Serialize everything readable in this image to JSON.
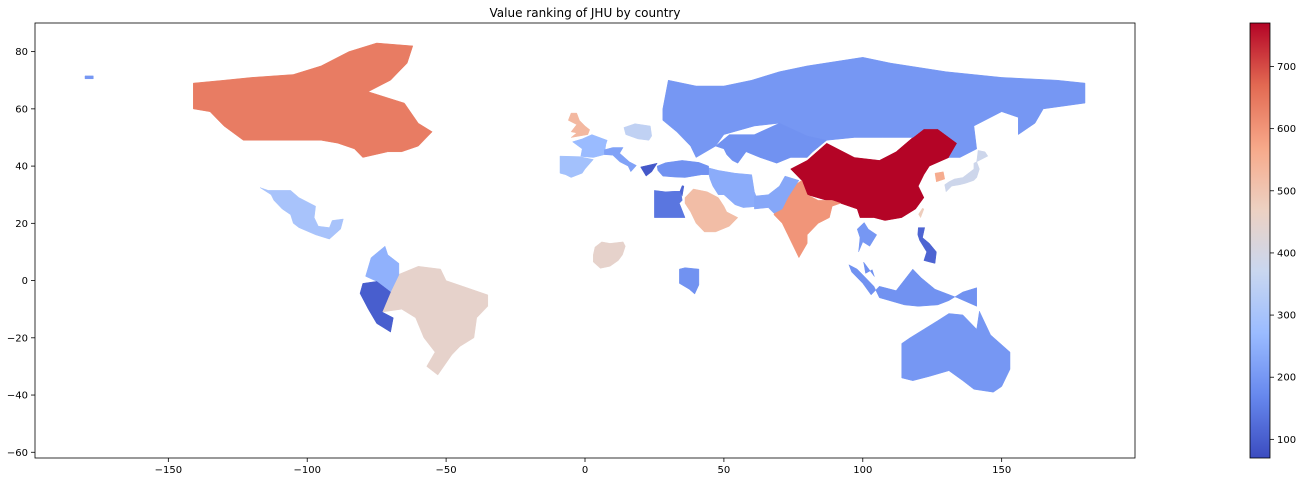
{
  "chart_data": {
    "type": "choropleth",
    "title": "Value ranking of JHU by country",
    "xlabel": "",
    "ylabel": "",
    "xlim": [
      -198,
      198
    ],
    "ylim": [
      -62,
      90
    ],
    "x_ticks": [
      -150,
      -100,
      -50,
      0,
      50,
      100,
      150
    ],
    "y_ticks": [
      -60,
      -40,
      -20,
      0,
      20,
      40,
      60,
      80
    ],
    "grid": false,
    "colormap": "coolwarm",
    "colorbar": {
      "range": [
        70,
        770
      ],
      "ticks": [
        100,
        200,
        300,
        400,
        500,
        600,
        700
      ],
      "stops": [
        "#3b4cc0",
        "#6788ee",
        "#9abbff",
        "#c9d7f0",
        "#edd1c2",
        "#f7a889",
        "#e26952",
        "#b40426"
      ]
    },
    "regions": [
      {
        "name": "China",
        "value": 770
      },
      {
        "name": "Canada",
        "value": 640
      },
      {
        "name": "India",
        "value": 600
      },
      {
        "name": "South Korea",
        "value": 560
      },
      {
        "name": "Saudi Arabia",
        "value": 520
      },
      {
        "name": "United Kingdom",
        "value": 530
      },
      {
        "name": "Taiwan",
        "value": 480
      },
      {
        "name": "Brazil",
        "value": 450
      },
      {
        "name": "Nigeria",
        "value": 450
      },
      {
        "name": "Japan",
        "value": 380
      },
      {
        "name": "Poland",
        "value": 350
      },
      {
        "name": "Mexico",
        "value": 300
      },
      {
        "name": "Spain",
        "value": 290
      },
      {
        "name": "France",
        "value": 270
      },
      {
        "name": "Colombia",
        "value": 250
      },
      {
        "name": "Iran",
        "value": 240
      },
      {
        "name": "Pakistan",
        "value": 230
      },
      {
        "name": "Italy",
        "value": 220
      },
      {
        "name": "Russia",
        "value": 200
      },
      {
        "name": "Australia",
        "value": 200
      },
      {
        "name": "Turkey",
        "value": 190
      },
      {
        "name": "Kazakhstan",
        "value": 190
      },
      {
        "name": "Indonesia",
        "value": 190
      },
      {
        "name": "Kenya",
        "value": 190
      },
      {
        "name": "United States (Alaska)",
        "value": 200
      },
      {
        "name": "Thailand",
        "value": 200
      },
      {
        "name": "Malaysia",
        "value": 190
      },
      {
        "name": "Egypt",
        "value": 140
      },
      {
        "name": "Philippines",
        "value": 110
      },
      {
        "name": "Peru",
        "value": 100
      },
      {
        "name": "Greece",
        "value": 90
      },
      {
        "name": "Israel",
        "value": 110
      }
    ]
  }
}
